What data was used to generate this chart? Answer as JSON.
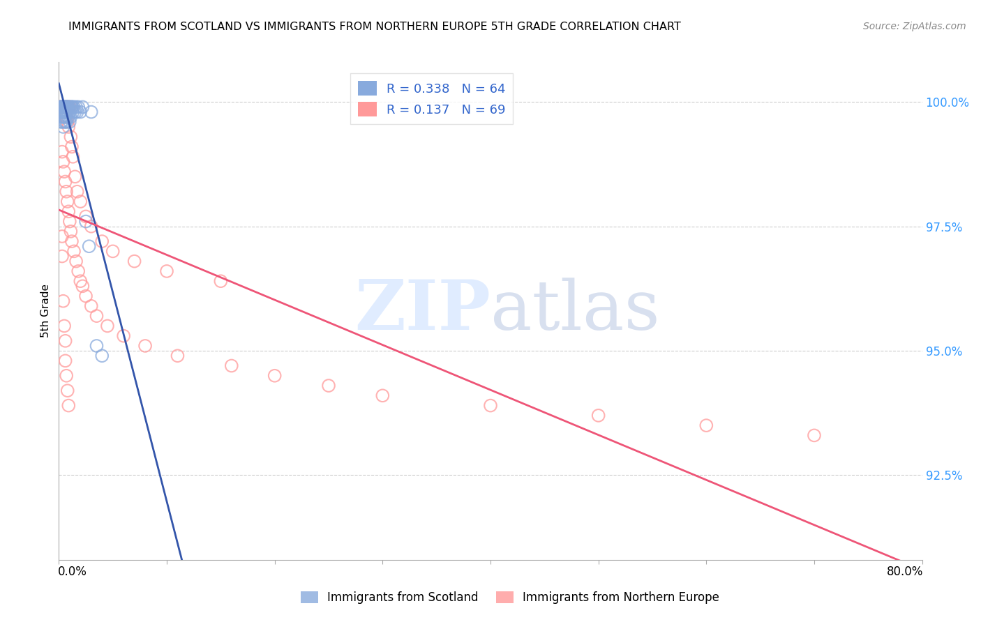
{
  "title": "IMMIGRANTS FROM SCOTLAND VS IMMIGRANTS FROM NORTHERN EUROPE 5TH GRADE CORRELATION CHART",
  "source": "Source: ZipAtlas.com",
  "ylabel": "5th Grade",
  "ytick_labels": [
    "92.5%",
    "95.0%",
    "97.5%",
    "100.0%"
  ],
  "ytick_values": [
    0.925,
    0.95,
    0.975,
    1.0
  ],
  "xlim": [
    0.0,
    0.8
  ],
  "ylim": [
    0.908,
    1.008
  ],
  "legend_label1": "Immigrants from Scotland",
  "legend_label2": "Immigrants from Northern Europe",
  "R1": 0.338,
  "N1": 64,
  "R2": 0.137,
  "N2": 69,
  "color_scotland": "#88AADD",
  "color_northern": "#FF9999",
  "color_scotland_line": "#3355AA",
  "color_northern_line": "#EE5577",
  "watermark_zip": "ZIP",
  "watermark_atlas": "atlas",
  "scatter_scotland_x": [
    0.001,
    0.001,
    0.002,
    0.002,
    0.002,
    0.003,
    0.003,
    0.003,
    0.003,
    0.004,
    0.004,
    0.004,
    0.004,
    0.005,
    0.005,
    0.005,
    0.005,
    0.006,
    0.006,
    0.006,
    0.006,
    0.007,
    0.007,
    0.007,
    0.008,
    0.008,
    0.008,
    0.009,
    0.009,
    0.01,
    0.01,
    0.01,
    0.011,
    0.011,
    0.012,
    0.013,
    0.014,
    0.015,
    0.016,
    0.017,
    0.018,
    0.02,
    0.022,
    0.025,
    0.028,
    0.03,
    0.035,
    0.04,
    0.012,
    0.013,
    0.009,
    0.008,
    0.007,
    0.006,
    0.005,
    0.004,
    0.003,
    0.003,
    0.002,
    0.002,
    0.004,
    0.005,
    0.006,
    0.007
  ],
  "scatter_scotland_y": [
    0.999,
    0.998,
    0.999,
    0.998,
    0.996,
    0.999,
    0.998,
    0.997,
    0.996,
    0.999,
    0.998,
    0.997,
    0.995,
    0.999,
    0.998,
    0.997,
    0.996,
    0.999,
    0.998,
    0.997,
    0.996,
    0.999,
    0.998,
    0.996,
    0.999,
    0.998,
    0.997,
    0.999,
    0.997,
    0.999,
    0.998,
    0.996,
    0.999,
    0.997,
    0.999,
    0.998,
    0.999,
    0.998,
    0.999,
    0.998,
    0.999,
    0.998,
    0.999,
    0.976,
    0.971,
    0.998,
    0.951,
    0.949,
    0.999,
    0.999,
    0.999,
    0.999,
    0.999,
    0.999,
    0.999,
    0.999,
    0.999,
    0.999,
    0.999,
    0.999,
    0.999,
    0.999,
    0.999,
    0.999
  ],
  "scatter_northern_x": [
    0.001,
    0.002,
    0.003,
    0.003,
    0.004,
    0.004,
    0.005,
    0.005,
    0.006,
    0.006,
    0.007,
    0.007,
    0.008,
    0.008,
    0.009,
    0.009,
    0.01,
    0.011,
    0.012,
    0.013,
    0.015,
    0.017,
    0.02,
    0.025,
    0.03,
    0.04,
    0.05,
    0.07,
    0.1,
    0.15,
    0.003,
    0.004,
    0.005,
    0.006,
    0.007,
    0.008,
    0.009,
    0.01,
    0.011,
    0.012,
    0.014,
    0.016,
    0.018,
    0.02,
    0.022,
    0.025,
    0.03,
    0.035,
    0.045,
    0.06,
    0.08,
    0.11,
    0.16,
    0.2,
    0.25,
    0.3,
    0.4,
    0.5,
    0.6,
    0.7,
    0.003,
    0.003,
    0.004,
    0.005,
    0.006,
    0.006,
    0.007,
    0.008,
    0.009
  ],
  "scatter_northern_y": [
    0.999,
    0.999,
    0.999,
    0.998,
    0.999,
    0.998,
    0.999,
    0.998,
    0.999,
    0.997,
    0.999,
    0.997,
    0.999,
    0.996,
    0.999,
    0.995,
    0.999,
    0.993,
    0.991,
    0.989,
    0.985,
    0.982,
    0.98,
    0.977,
    0.975,
    0.972,
    0.97,
    0.968,
    0.966,
    0.964,
    0.99,
    0.988,
    0.986,
    0.984,
    0.982,
    0.98,
    0.978,
    0.976,
    0.974,
    0.972,
    0.97,
    0.968,
    0.966,
    0.964,
    0.963,
    0.961,
    0.959,
    0.957,
    0.955,
    0.953,
    0.951,
    0.949,
    0.947,
    0.945,
    0.943,
    0.941,
    0.939,
    0.937,
    0.935,
    0.933,
    0.973,
    0.969,
    0.96,
    0.955,
    0.952,
    0.948,
    0.945,
    0.942,
    0.939
  ]
}
